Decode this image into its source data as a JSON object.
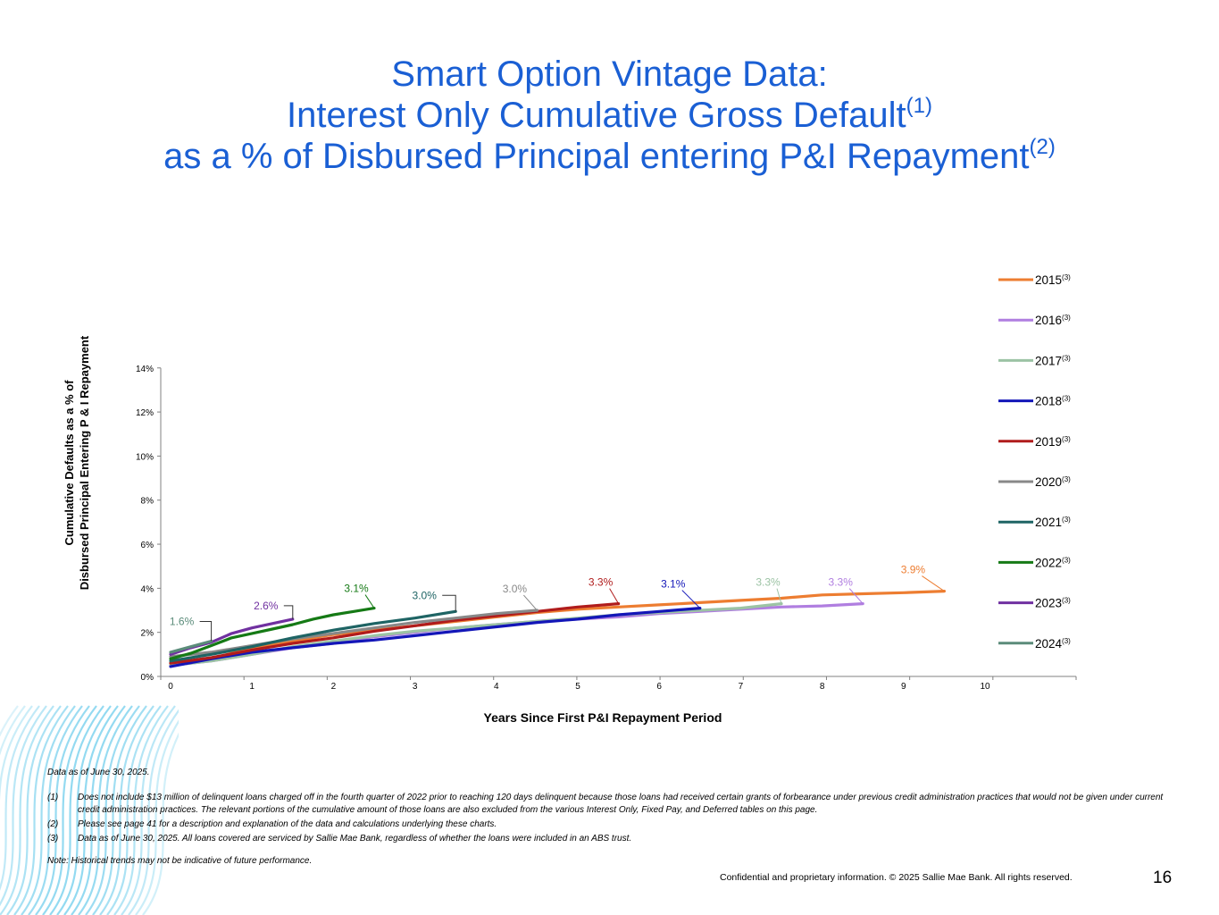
{
  "title": {
    "line1": "Smart Option Vintage Data:",
    "line2": "Interest Only Cumulative Gross Default",
    "line2_sup": "(1)",
    "line3": "as a % of Disbursed Principal entering P&I Repayment",
    "line3_sup": "(2)"
  },
  "chart_data": {
    "type": "line",
    "title": "",
    "xlabel": "Years Since First P&I Repayment Period",
    "ylabel_line1": "Cumulative Defaults as a % of",
    "ylabel_line2": "Disbursed Principal  Entering P & I Repayment",
    "xlim": [
      0,
      11
    ],
    "ylim": [
      0,
      14
    ],
    "x_ticks": [
      "0",
      "1",
      "2",
      "3",
      "4",
      "5",
      "6",
      "7",
      "8",
      "9",
      "10"
    ],
    "y_ticks": [
      "0%",
      "2%",
      "4%",
      "6%",
      "8%",
      "10%",
      "12%",
      "14%"
    ],
    "grid": false,
    "legend_position": "right",
    "series": [
      {
        "name": "2015",
        "sup": "(3)",
        "color": "#ed7d31",
        "end_label": "3.9%",
        "points": [
          [
            0,
            0.6
          ],
          [
            0.5,
            0.8
          ],
          [
            1,
            1.3
          ],
          [
            1.5,
            1.6
          ],
          [
            2,
            1.9
          ],
          [
            2.5,
            2.1
          ],
          [
            3,
            2.3
          ],
          [
            3.5,
            2.5
          ],
          [
            4,
            2.7
          ],
          [
            4.5,
            2.9
          ],
          [
            5,
            3.05
          ],
          [
            5.5,
            3.15
          ],
          [
            6,
            3.25
          ],
          [
            6.5,
            3.35
          ],
          [
            7,
            3.45
          ],
          [
            7.5,
            3.55
          ],
          [
            8,
            3.7
          ],
          [
            8.5,
            3.75
          ],
          [
            9,
            3.8
          ],
          [
            9.5,
            3.87
          ]
        ]
      },
      {
        "name": "2016",
        "sup": "(3)",
        "color": "#b07ee0",
        "end_label": "3.3%",
        "points": [
          [
            0,
            0.5
          ],
          [
            0.5,
            0.7
          ],
          [
            1,
            1.0
          ],
          [
            1.5,
            1.3
          ],
          [
            2,
            1.5
          ],
          [
            2.5,
            1.8
          ],
          [
            3,
            2.0
          ],
          [
            3.5,
            2.2
          ],
          [
            4,
            2.35
          ],
          [
            4.5,
            2.5
          ],
          [
            5,
            2.6
          ],
          [
            5.5,
            2.7
          ],
          [
            6,
            2.85
          ],
          [
            6.5,
            2.95
          ],
          [
            7,
            3.05
          ],
          [
            7.5,
            3.15
          ],
          [
            8,
            3.2
          ],
          [
            8.5,
            3.3
          ]
        ]
      },
      {
        "name": "2017",
        "sup": "(3)",
        "color": "#9cc3a4",
        "end_label": "3.3%",
        "points": [
          [
            0,
            0.5
          ],
          [
            0.5,
            0.7
          ],
          [
            1,
            1.0
          ],
          [
            1.5,
            1.35
          ],
          [
            2,
            1.6
          ],
          [
            2.5,
            1.85
          ],
          [
            3,
            2.05
          ],
          [
            3.5,
            2.2
          ],
          [
            4,
            2.35
          ],
          [
            4.5,
            2.5
          ],
          [
            5,
            2.65
          ],
          [
            5.5,
            2.8
          ],
          [
            6,
            2.9
          ],
          [
            6.5,
            3.0
          ],
          [
            7,
            3.1
          ],
          [
            7.5,
            3.3
          ]
        ]
      },
      {
        "name": "2018",
        "sup": "(3)",
        "color": "#1316b8",
        "end_label": "3.1%",
        "points": [
          [
            0,
            0.45
          ],
          [
            0.5,
            0.8
          ],
          [
            1,
            1.1
          ],
          [
            1.5,
            1.3
          ],
          [
            2,
            1.5
          ],
          [
            2.5,
            1.65
          ],
          [
            3,
            1.85
          ],
          [
            3.5,
            2.05
          ],
          [
            4,
            2.25
          ],
          [
            4.5,
            2.45
          ],
          [
            5,
            2.6
          ],
          [
            5.5,
            2.8
          ],
          [
            6,
            2.95
          ],
          [
            6.5,
            3.1
          ]
        ]
      },
      {
        "name": "2019",
        "sup": "(3)",
        "color": "#b01c1c",
        "end_label": "3.3%",
        "points": [
          [
            0,
            0.6
          ],
          [
            0.5,
            0.85
          ],
          [
            1,
            1.2
          ],
          [
            1.5,
            1.5
          ],
          [
            2,
            1.75
          ],
          [
            2.5,
            2.05
          ],
          [
            3,
            2.3
          ],
          [
            3.5,
            2.55
          ],
          [
            4,
            2.75
          ],
          [
            4.5,
            2.95
          ],
          [
            5,
            3.15
          ],
          [
            5.5,
            3.3
          ]
        ]
      },
      {
        "name": "2020",
        "sup": "(3)",
        "color": "#888888",
        "end_label": "3.0%",
        "points": [
          [
            0,
            0.9
          ],
          [
            0.5,
            1.1
          ],
          [
            1,
            1.4
          ],
          [
            1.5,
            1.7
          ],
          [
            2,
            1.95
          ],
          [
            2.5,
            2.2
          ],
          [
            3,
            2.45
          ],
          [
            3.5,
            2.65
          ],
          [
            4,
            2.85
          ],
          [
            4.5,
            3.0
          ]
        ]
      },
      {
        "name": "2021",
        "sup": "(3)",
        "color": "#1e6464",
        "end_label": "3.0%",
        "points": [
          [
            0,
            0.7
          ],
          [
            0.5,
            1.0
          ],
          [
            1,
            1.35
          ],
          [
            1.5,
            1.75
          ],
          [
            2,
            2.1
          ],
          [
            2.5,
            2.4
          ],
          [
            3,
            2.65
          ],
          [
            3.5,
            2.95
          ]
        ]
      },
      {
        "name": "2022",
        "sup": "(3)",
        "color": "#157a15",
        "end_label": "3.1%",
        "points": [
          [
            0,
            0.8
          ],
          [
            0.25,
            1.05
          ],
          [
            0.5,
            1.4
          ],
          [
            0.75,
            1.75
          ],
          [
            1,
            1.95
          ],
          [
            1.25,
            2.15
          ],
          [
            1.5,
            2.35
          ],
          [
            1.75,
            2.6
          ],
          [
            2,
            2.8
          ],
          [
            2.25,
            2.95
          ],
          [
            2.5,
            3.1
          ]
        ]
      },
      {
        "name": "2023",
        "sup": "(3)",
        "color": "#7030a0",
        "end_label": "2.6%",
        "points": [
          [
            0,
            1.0
          ],
          [
            0.25,
            1.3
          ],
          [
            0.5,
            1.55
          ],
          [
            0.75,
            1.95
          ],
          [
            1,
            2.2
          ],
          [
            1.25,
            2.4
          ],
          [
            1.5,
            2.6
          ]
        ]
      },
      {
        "name": "2024",
        "sup": "(3)",
        "color": "#5b8c7a",
        "end_label": "1.6%",
        "points": [
          [
            0,
            1.1
          ],
          [
            0.25,
            1.35
          ],
          [
            0.5,
            1.6
          ]
        ]
      }
    ]
  },
  "footnotes": {
    "data_as_of": "Data as of June 30, 2025.",
    "items": [
      {
        "num": "(1)",
        "text": "Does not include $13 million of delinquent loans charged off in the fourth quarter of 2022 prior to reaching 120 days delinquent because those loans had received certain grants of forbearance under previous credit administration practices that would not be given under current credit administration practices. The relevant portions of the cumulative amount of those loans are also excluded from the various Interest Only, Fixed Pay, and Deferred tables on this page."
      },
      {
        "num": "(2)",
        "text": "Please see page 41 for a description and explanation of the data and calculations underlying these charts."
      },
      {
        "num": "(3)",
        "text": "Data as of  June 30, 2025. All loans covered are serviced by Sallie Mae Bank, regardless of whether the loans were included in an ABS trust."
      }
    ],
    "note": "Note: Historical trends may not be indicative of future performance."
  },
  "footer": {
    "confidential": "Confidential and proprietary information. © 2025 Sallie Mae Bank. All rights reserved.",
    "page_number": "16"
  }
}
